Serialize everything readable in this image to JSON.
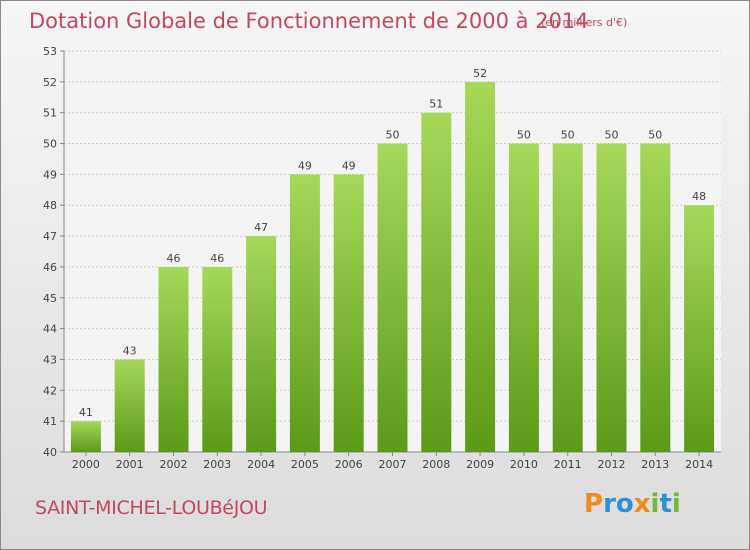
{
  "header": {
    "title": "Dotation Globale de Fonctionnement de 2000 à 2014",
    "unit": "(en milliers d'€)"
  },
  "footer": {
    "commune": "SAINT-MICHEL-LOUBéJOU",
    "brand_letters": [
      {
        "ch": "P",
        "color": "#f08a1c"
      },
      {
        "ch": "r",
        "color": "#2f8fd4"
      },
      {
        "ch": "o",
        "color": "#2f8fd4"
      },
      {
        "ch": "x",
        "color": "#f08a1c"
      },
      {
        "ch": "i",
        "color": "#74b83a"
      },
      {
        "ch": "t",
        "color": "#2f8fd4"
      },
      {
        "ch": "i",
        "color": "#74b83a"
      }
    ]
  },
  "chart_data": {
    "type": "bar",
    "categories": [
      "2000",
      "2001",
      "2002",
      "2003",
      "2004",
      "2005",
      "2006",
      "2007",
      "2008",
      "2009",
      "2010",
      "2011",
      "2012",
      "2013",
      "2014"
    ],
    "values": [
      41,
      43,
      46,
      46,
      47,
      49,
      49,
      50,
      51,
      52,
      50,
      50,
      50,
      50,
      48
    ],
    "ylim": [
      40,
      53
    ],
    "yticks": [
      40,
      41,
      42,
      43,
      44,
      45,
      46,
      47,
      48,
      49,
      50,
      51,
      52,
      53
    ],
    "grid": true,
    "bar_color_top": "#a6d85a",
    "bar_color_bottom": "#5b9a18"
  }
}
